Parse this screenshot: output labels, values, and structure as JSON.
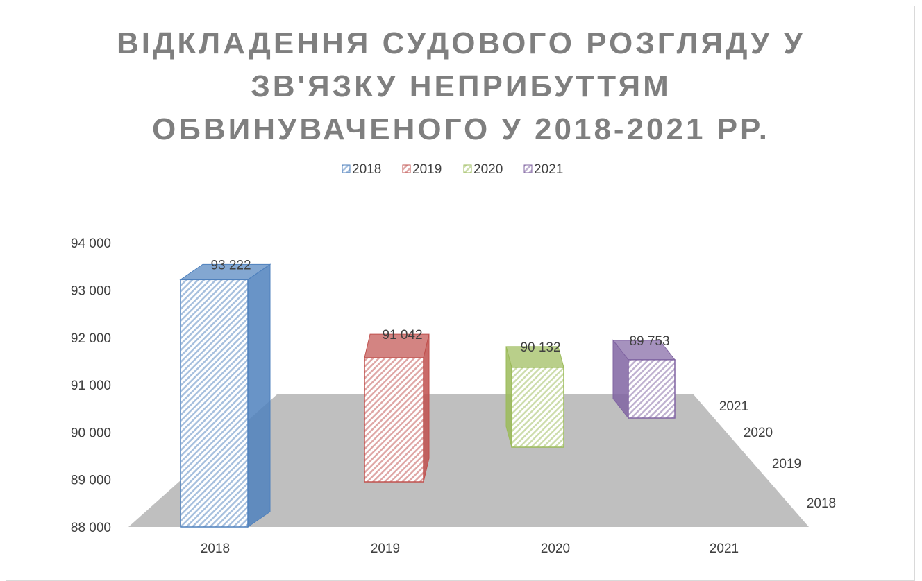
{
  "chart_data": {
    "type": "bar3d",
    "title": "ВІДКЛАДЕННЯ СУДОВОГО РОЗГЛЯДУ У ЗВ'ЯЗКУ НЕПРИБУТТЯМ ОБВИНУВАЧЕНОГО У 2018-2021 РР.",
    "categories": [
      "2018",
      "2019",
      "2020",
      "2021"
    ],
    "series": [
      {
        "name": "2018",
        "color": "#4f81bd",
        "values": [
          93222,
          null,
          null,
          null
        ],
        "value_labels": [
          "93 222",
          null,
          null,
          null
        ]
      },
      {
        "name": "2019",
        "color": "#c0504d",
        "values": [
          null,
          91042,
          null,
          null
        ],
        "value_labels": [
          null,
          "91 042",
          null,
          null
        ]
      },
      {
        "name": "2020",
        "color": "#9bbb59",
        "values": [
          null,
          null,
          90132,
          null
        ],
        "value_labels": [
          null,
          null,
          "90 132",
          null
        ]
      },
      {
        "name": "2021",
        "color": "#8064a2",
        "values": [
          null,
          null,
          null,
          89753
        ],
        "value_labels": [
          null,
          null,
          null,
          "89 753"
        ]
      }
    ],
    "ylim": [
      88000,
      94000
    ],
    "yticks": [
      {
        "value": 88000,
        "label": "88 000"
      },
      {
        "value": 89000,
        "label": "89 000"
      },
      {
        "value": 90000,
        "label": "90 000"
      },
      {
        "value": 91000,
        "label": "91 000"
      },
      {
        "value": 92000,
        "label": "92 000"
      },
      {
        "value": 93000,
        "label": "93 000"
      },
      {
        "value": 94000,
        "label": "94 000"
      }
    ],
    "legend": "top"
  }
}
